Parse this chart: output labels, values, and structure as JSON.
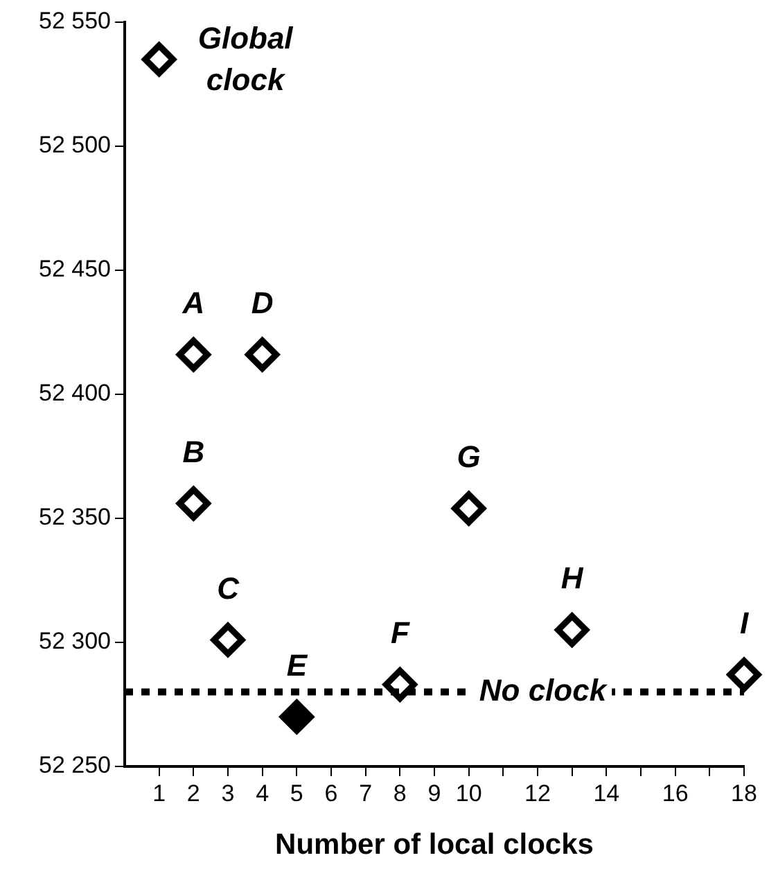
{
  "chart_data": {
    "type": "scatter",
    "xlabel": "Number of local clocks",
    "xlim": [
      0,
      18
    ],
    "xticks": [
      1,
      2,
      3,
      4,
      5,
      6,
      7,
      8,
      9,
      10,
      {
        "value": 11,
        "label": null
      },
      12,
      {
        "value": 13,
        "label": null
      },
      14,
      {
        "value": 15,
        "label": null
      },
      16,
      {
        "value": 17,
        "label": null
      },
      18
    ],
    "ylim": [
      52250,
      52550
    ],
    "yticks": [
      {
        "value": 52250,
        "label": "52 250"
      },
      {
        "value": 52300,
        "label": "52 300"
      },
      {
        "value": 52350,
        "label": "52 350"
      },
      {
        "value": 52400,
        "label": "52 400"
      },
      {
        "value": 52450,
        "label": "52 450"
      },
      {
        "value": 52500,
        "label": "52 500"
      },
      {
        "value": 52550,
        "label": "52 550"
      }
    ],
    "series": [
      {
        "color": "#000000",
        "x": [
          1,
          2,
          2,
          3,
          4,
          5,
          8,
          10,
          13,
          18
        ],
        "values": [
          52535,
          52416,
          52356,
          52301,
          52416,
          52270,
          52283,
          52354,
          52305,
          52287
        ],
        "colors": [
          "#ffffff",
          "#ffffff",
          "#ffffff",
          "#ffffff",
          "#ffffff",
          "#000000",
          "#ffffff",
          "#ffffff",
          "#ffffff",
          "#ffffff"
        ]
      }
    ],
    "marker": "diamond",
    "grid": false,
    "legend": false,
    "ref_lines": [
      {
        "axis": "y",
        "value": 52280,
        "label": "No clock",
        "line_style": "dotted",
        "color": "#000000"
      }
    ],
    "annotations": [
      {
        "text": "Global\nclock",
        "x": 1,
        "y": 52535
      },
      {
        "text": "A",
        "x": 2,
        "y": 52416
      },
      {
        "text": "B",
        "x": 2,
        "y": 52356
      },
      {
        "text": "C",
        "x": 3,
        "y": 52301
      },
      {
        "text": "D",
        "x": 4,
        "y": 52416
      },
      {
        "text": "E",
        "x": 5,
        "y": 52270
      },
      {
        "text": "F",
        "x": 8,
        "y": 52283
      },
      {
        "text": "G",
        "x": 10,
        "y": 52354
      },
      {
        "text": "H",
        "x": 13,
        "y": 52305
      },
      {
        "text": "I",
        "x": 18,
        "y": 52287
      }
    ]
  }
}
